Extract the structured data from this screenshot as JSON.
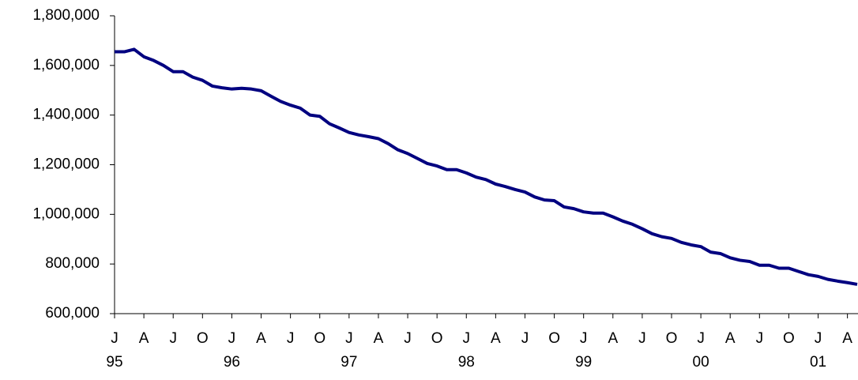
{
  "chart_data": {
    "type": "line",
    "categories": [
      "J",
      null,
      null,
      "A",
      null,
      null,
      "J",
      null,
      null,
      "O",
      null,
      null,
      "J",
      null,
      null,
      "A",
      null,
      null,
      "J",
      null,
      null,
      "O",
      null,
      null,
      "J",
      null,
      null,
      "A",
      null,
      null,
      "J",
      null,
      null,
      "O",
      null,
      null,
      "J",
      null,
      null,
      "A",
      null,
      null,
      "J",
      null,
      null,
      "O",
      null,
      null,
      "J",
      null,
      null,
      "A",
      null,
      null,
      "J",
      null,
      null,
      "O",
      null,
      null,
      "J",
      null,
      null,
      "A",
      null,
      null,
      "J",
      null,
      null,
      "O",
      null,
      null,
      "J",
      null,
      null,
      "A",
      null
    ],
    "year_labels": [
      "95",
      null,
      null,
      null,
      null,
      null,
      null,
      null,
      null,
      null,
      null,
      null,
      "96",
      null,
      null,
      null,
      null,
      null,
      null,
      null,
      null,
      null,
      null,
      null,
      "97",
      null,
      null,
      null,
      null,
      null,
      null,
      null,
      null,
      null,
      null,
      null,
      "98",
      null,
      null,
      null,
      null,
      null,
      null,
      null,
      null,
      null,
      null,
      null,
      "99",
      null,
      null,
      null,
      null,
      null,
      null,
      null,
      null,
      null,
      null,
      null,
      "00",
      null,
      null,
      null,
      null,
      null,
      null,
      null,
      null,
      null,
      null,
      null,
      "01",
      null,
      null,
      null,
      null
    ],
    "series": [
      {
        "color": "#000080",
        "values": [
          1655000,
          1655000,
          1665000,
          1635000,
          1620000,
          1600000,
          1575000,
          1575000,
          1553000,
          1540000,
          1517000,
          1510000,
          1505000,
          1508000,
          1505000,
          1498000,
          1476000,
          1455000,
          1440000,
          1428000,
          1400000,
          1395000,
          1365000,
          1348000,
          1330000,
          1320000,
          1313000,
          1305000,
          1285000,
          1260000,
          1245000,
          1225000,
          1205000,
          1195000,
          1180000,
          1180000,
          1167000,
          1150000,
          1140000,
          1122000,
          1112000,
          1100000,
          1090000,
          1070000,
          1058000,
          1055000,
          1030000,
          1023000,
          1010000,
          1005000,
          1005000,
          990000,
          973000,
          960000,
          942000,
          922000,
          910000,
          903000,
          887000,
          877000,
          870000,
          848000,
          842000,
          825000,
          815000,
          810000,
          795000,
          795000,
          783000,
          783000,
          770000,
          757000,
          750000,
          738000,
          731000,
          725000,
          718000
        ]
      }
    ],
    "ylim": [
      600000,
      1800000
    ],
    "yticks": [
      {
        "value": 600000,
        "label": "600,000"
      },
      {
        "value": 800000,
        "label": "800,000"
      },
      {
        "value": 1000000,
        "label": "1,000,000"
      },
      {
        "value": 1200000,
        "label": "1,200,000"
      },
      {
        "value": 1400000,
        "label": "1,400,000"
      },
      {
        "value": 1600000,
        "label": "1,600,000"
      },
      {
        "value": 1800000,
        "label": "1,800,000"
      }
    ]
  }
}
